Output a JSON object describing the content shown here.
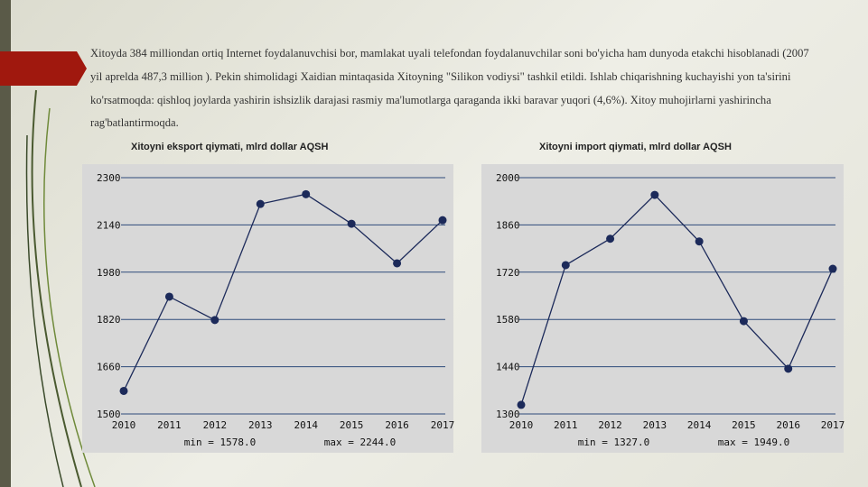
{
  "text": "Xitoyda 384 milliondan ortiq Internet foydalanuvchisi bor, mamlakat uyali telefondan foydalanuvchilar soni bo'yicha ham dunyoda etakchi hisoblanadi (2007 yil aprelda 487,3 million ). Pekin shimolidagi Xaidian mintaqasida Xitoyning \"Silikon vodiysi\" tashkil etildi. Ishlab chiqarishning kuchayishi yon ta'sirini ko'rsatmoqda: qishloq joylarda yashirin ishsizlik darajasi rasmiy ma'lumotlarga qaraganda ikki baravar yuqori (4,6%). Xitoy muhojirlarni yashirincha rag'batlantirmoqda.",
  "chart_data": [
    {
      "type": "line",
      "title": "Xitoyni eksport qiymati, mlrd dollar AQSH",
      "categories": [
        "2010",
        "2011",
        "2012",
        "2013",
        "2014",
        "2015",
        "2016",
        "2017"
      ],
      "values": [
        1578,
        1897,
        1818,
        2211,
        2244,
        2144,
        2010,
        2156
      ],
      "color": "#1c2a5a",
      "grid": true,
      "ylim": [
        1500,
        2300
      ],
      "yticks": [
        1500,
        1660,
        1820,
        1980,
        2140,
        2300
      ],
      "annotations": [
        "min = 1578.0",
        "max = 2244.0"
      ]
    },
    {
      "type": "line",
      "title": "Xitoyni import qiymati, mlrd dollar AQSH",
      "categories": [
        "2010",
        "2011",
        "2012",
        "2013",
        "2014",
        "2015",
        "2016",
        "2017"
      ],
      "values": [
        1327,
        1741,
        1819,
        1949,
        1811,
        1575,
        1434,
        1730
      ],
      "color": "#1c2a5a",
      "grid": true,
      "ylim": [
        1300,
        2000
      ],
      "yticks": [
        1300,
        1440,
        1580,
        1720,
        1860,
        2000
      ],
      "annotations": [
        "min = 1327.0",
        "max = 1949.0"
      ]
    }
  ]
}
